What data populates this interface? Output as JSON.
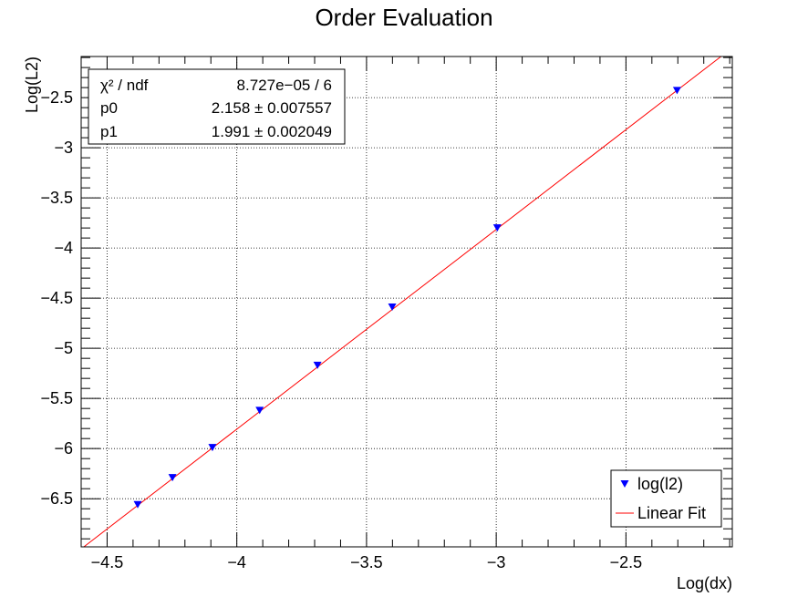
{
  "chart_data": {
    "type": "scatter",
    "title": "Order Evaluation",
    "xlabel": "Log(dx)",
    "ylabel": "Log(L2)",
    "xlim": [
      -4.6,
      -2.09
    ],
    "ylim": [
      -6.98,
      -2.09
    ],
    "grid": true,
    "x_ticks": [
      -4.5,
      -4,
      -3.5,
      -3,
      -2.5
    ],
    "x_tick_labels": [
      "−4.5",
      "−4",
      "−3.5",
      "−3",
      "−2.5"
    ],
    "y_ticks": [
      -2.5,
      -3,
      -3.5,
      -4,
      -4.5,
      -5,
      -5.5,
      -6,
      -6.5
    ],
    "y_tick_labels": [
      "−2.5",
      "−3",
      "−3.5",
      "−4",
      "−4.5",
      "−5",
      "−5.5",
      "−6",
      "−6.5"
    ],
    "series": [
      {
        "name": "log(l2)",
        "marker": "triangle-down",
        "color": "#0000ff",
        "x": [
          -4.382,
          -4.248,
          -4.094,
          -3.912,
          -3.689,
          -3.401,
          -2.996,
          -2.303
        ],
        "y": [
          -6.56,
          -6.29,
          -5.99,
          -5.62,
          -5.17,
          -4.59,
          -3.8,
          -2.43
        ]
      },
      {
        "name": "Linear Fit",
        "type": "line",
        "color": "#ff0000",
        "slope": 1.991,
        "intercept": 2.158
      }
    ],
    "legend": {
      "position": "bottom-right",
      "entries": [
        "log(l2)",
        "Linear Fit"
      ]
    },
    "stats": {
      "rows": [
        {
          "label": "χ² / ndf",
          "value": "8.727e−05 / 6"
        },
        {
          "label": "p0",
          "value": "2.158 ± 0.007557"
        },
        {
          "label": "p1",
          "value": "1.991 ± 0.002049"
        }
      ]
    }
  }
}
